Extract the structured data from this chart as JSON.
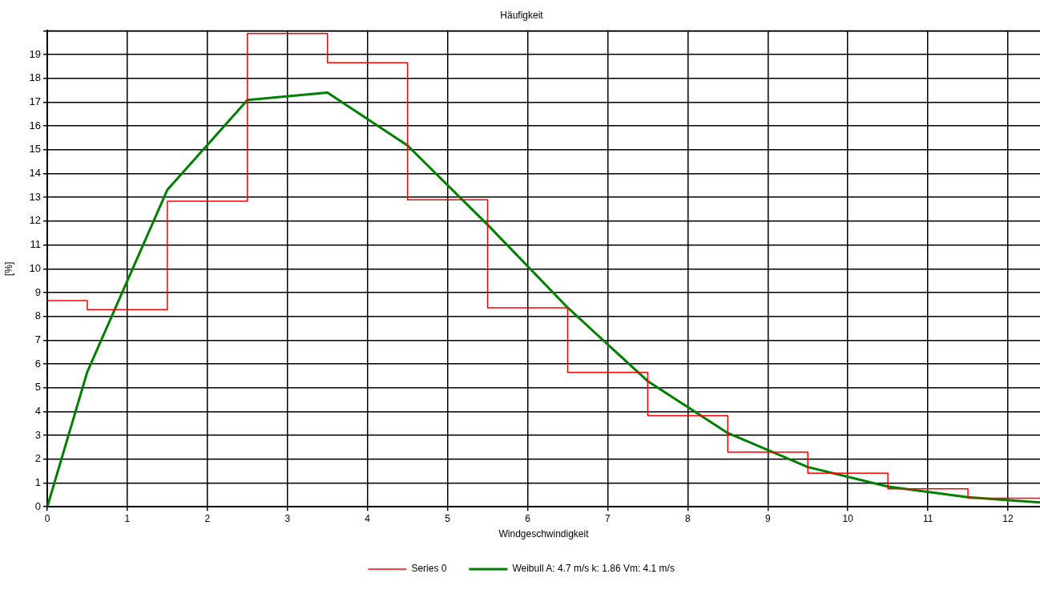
{
  "chart_data": {
    "type": "line",
    "title": "Häufigkeit",
    "xlabel": "Windgeschwindigkeit",
    "ylabel": "[%]",
    "xlim": [
      0,
      12.4
    ],
    "xticks": [
      0,
      1,
      2,
      3,
      4,
      5,
      6,
      7,
      8,
      9,
      10,
      11,
      12
    ],
    "ylim": [
      0,
      20
    ],
    "yticks": [
      0,
      1,
      2,
      3,
      4,
      5,
      6,
      7,
      8,
      9,
      10,
      11,
      12,
      13,
      14,
      15,
      16,
      17,
      18,
      19,
      {
        "value": 20,
        "label": null
      }
    ],
    "grid": true,
    "legend": "bottom",
    "marker": "none",
    "line_style": "solid",
    "series": [
      {
        "name": "Series 0",
        "type": "step",
        "color": "#ff0000",
        "x": [
          0,
          0.5,
          1.5,
          2.5,
          3.5,
          4.5,
          5.5,
          6.5,
          7.5,
          8.5,
          9.5,
          10.5,
          11.5,
          12.4
        ],
        "values": [
          8.66,
          8.28,
          12.84,
          19.89,
          18.66,
          12.9,
          8.36,
          5.65,
          3.83,
          2.3,
          1.41,
          0.76,
          0.36,
          0.36
        ]
      },
      {
        "name": "Weibull A: 4.7 m/s k: 1.86 Vm: 4.1 m/s",
        "type": "line",
        "color": "#008000",
        "x": [
          0,
          0.5,
          1.5,
          2.5,
          3.5,
          4.5,
          5.5,
          6.5,
          7.5,
          8.5,
          9.5,
          10.5,
          11.5,
          12.4
        ],
        "values": [
          0,
          5.67,
          13.32,
          17.09,
          17.4,
          15.18,
          11.85,
          8.37,
          5.28,
          3.1,
          1.67,
          0.85,
          0.4,
          0.18
        ]
      }
    ]
  }
}
